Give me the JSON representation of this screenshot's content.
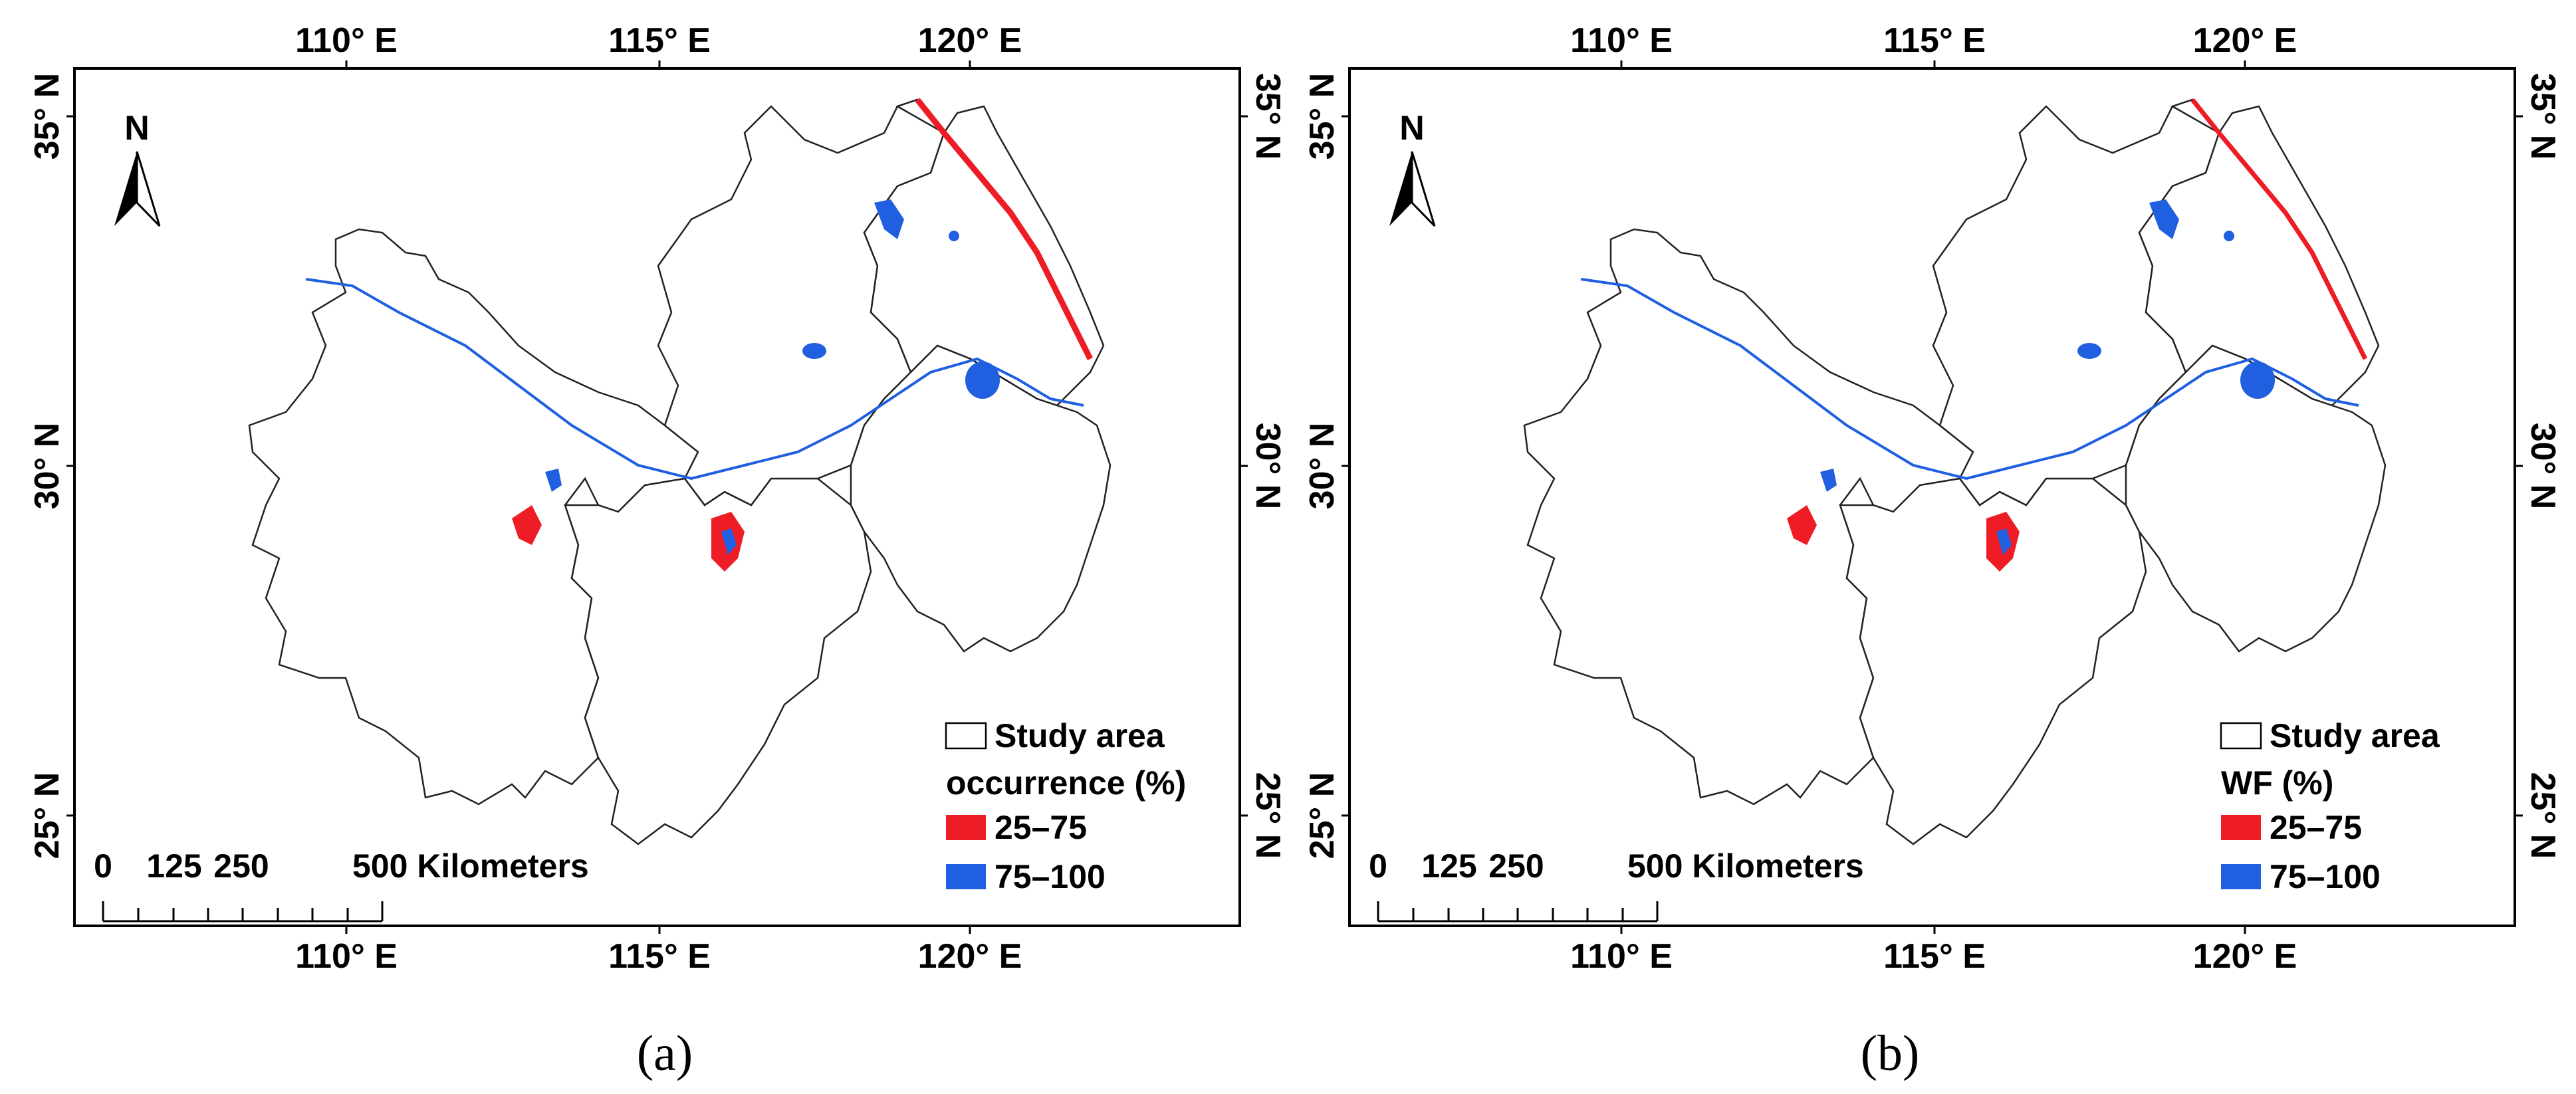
{
  "figure": {
    "panels": [
      {
        "id": "a",
        "label": "(a)",
        "legend": {
          "study_area": "Study area",
          "title": "occurrence (%)",
          "classes": [
            {
              "label": "25–75",
              "color": "#ee1c25"
            },
            {
              "label": "75–100",
              "color": "#1f5fe0"
            }
          ]
        }
      },
      {
        "id": "b",
        "label": "(b)",
        "legend": {
          "study_area": "Study area",
          "title": "WF (%)",
          "classes": [
            {
              "label": "25–75",
              "color": "#ee1c25"
            },
            {
              "label": "75–100",
              "color": "#1f5fe0"
            }
          ]
        }
      }
    ],
    "lon_ticks": [
      "110° E",
      "115° E",
      "120° E"
    ],
    "lat_ticks": [
      "35° N",
      "30° N",
      "25° N"
    ],
    "north_arrow": "N",
    "scale_bar": {
      "labels": [
        "0",
        "125",
        "250",
        "500 Kilometers"
      ]
    },
    "colors": {
      "boundary": "#222222",
      "red": "#ee1c25",
      "blue": "#1f5fe0"
    }
  }
}
